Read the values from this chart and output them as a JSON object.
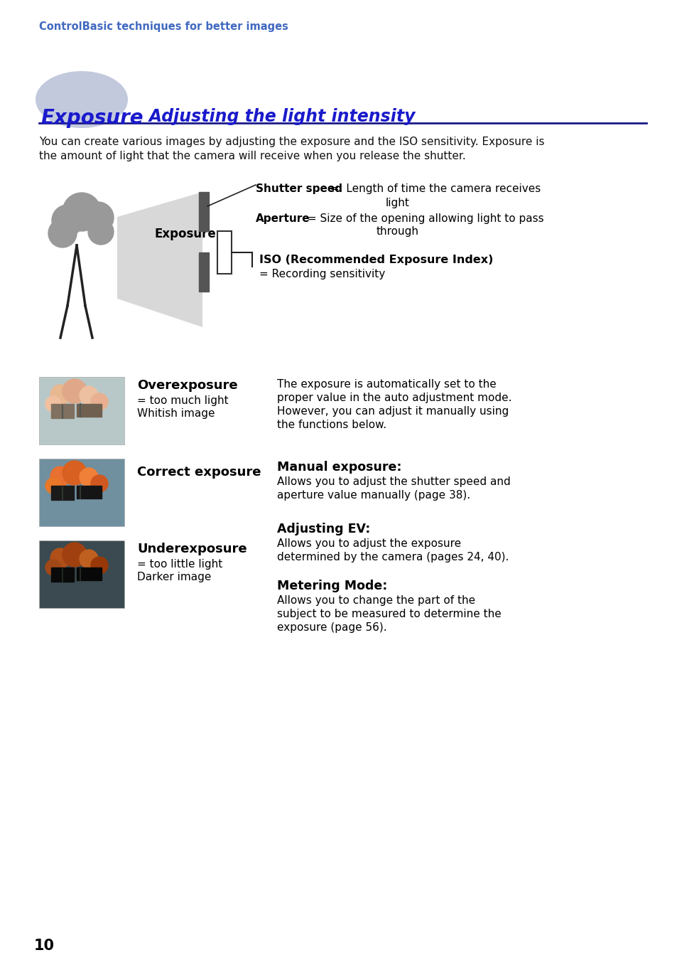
{
  "bg_color": "#ffffff",
  "header_color": "#4169c0",
  "header_text": "ControlBasic techniques for better images",
  "title_word1": "Exposure",
  "title_word2": "   Adjusting the light intensity",
  "title_color": "#1a1acc",
  "title_bg_color": "#b8c0d8",
  "hr_color": "#1a1a88",
  "body_text1": "You can create various images by adjusting the exposure and the ISO sensitivity. Exposure is",
  "body_text2": "the amount of light that the camera will receive when you release the shutter.",
  "exposure_label": "Exposure:",
  "shutter_bold": "Shutter speed",
  "shutter_rest": " =  Length of time the camera receives",
  "shutter_rest2": "light",
  "aperture_bold": "Aperture",
  "aperture_rest": " = Size of the opening allowing light to pass",
  "aperture_rest2": "through",
  "iso_bold": "ISO (Recommended Exposure Index)",
  "iso_eq": "= Recording sensitivity",
  "overexposure_title": "Overexposure",
  "overexposure_desc1": "= too much light",
  "overexposure_desc2": "Whitish image",
  "correct_title": "Correct exposure",
  "underexposure_title": "Underexposure",
  "underexposure_desc1": "= too little light",
  "underexposure_desc2": "Darker image",
  "auto_text1": "The exposure is automatically set to the",
  "auto_text2": "proper value in the auto adjustment mode.",
  "auto_text3": "However, you can adjust it manually using",
  "auto_text4": "the functions below.",
  "manual_title": "Manual exposure:",
  "manual_desc1": "Allows you to adjust the shutter speed and",
  "manual_desc2": "aperture value manually (page 38).",
  "ev_title": "Adjusting EV:",
  "ev_desc1": "Allows you to adjust the exposure",
  "ev_desc2": "determined by the camera (pages 24, 40).",
  "metering_title": "Metering Mode:",
  "metering_desc1": "Allows you to change the part of the",
  "metering_desc2": "subject to be measured to determine the",
  "metering_desc3": "exposure (page 56).",
  "page_number": "10"
}
